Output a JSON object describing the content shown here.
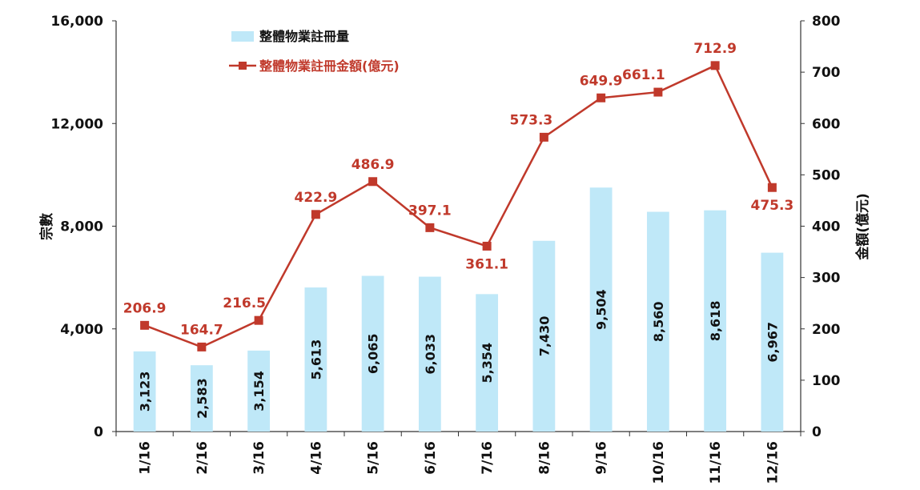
{
  "chart_data": {
    "type": "bar+line",
    "categories": [
      "1/16",
      "2/16",
      "3/16",
      "4/16",
      "5/16",
      "6/16",
      "7/16",
      "8/16",
      "9/16",
      "10/16",
      "11/16",
      "12/16"
    ],
    "series": [
      {
        "name": "整體物業註冊量",
        "type": "bar",
        "axis": "left",
        "color": "#bfe8f8",
        "values": [
          3123,
          2583,
          3154,
          5613,
          6065,
          6033,
          5354,
          7430,
          9504,
          8560,
          8618,
          6967
        ],
        "labels": [
          "3,123",
          "2,583",
          "3,154",
          "5,613",
          "6,065",
          "6,033",
          "5,354",
          "7,430",
          "9,504",
          "8,560",
          "8,618",
          "6,967"
        ]
      },
      {
        "name": "整體物業註冊金額(億元)",
        "type": "line",
        "axis": "right",
        "color": "#c0392b",
        "values": [
          206.9,
          164.7,
          216.5,
          422.9,
          486.9,
          397.1,
          361.1,
          573.3,
          649.9,
          661.1,
          712.9,
          475.3
        ],
        "labels": [
          "206.9",
          "164.7",
          "216.5",
          "422.9",
          "486.9",
          "397.1",
          "361.1",
          "573.3",
          "649.9",
          "661.1",
          "712.9",
          "475.3"
        ]
      }
    ],
    "ylabel": "宗數",
    "y2label": "金額(億元)",
    "ylim": [
      0,
      16000
    ],
    "y2lim": [
      0,
      800
    ],
    "yticks": [
      "0",
      "4,000",
      "8,000",
      "12,000",
      "16,000"
    ],
    "y2ticks": [
      "0",
      "100",
      "200",
      "300",
      "400",
      "500",
      "600",
      "700",
      "800"
    ],
    "grid": false,
    "legend": "top-left"
  }
}
